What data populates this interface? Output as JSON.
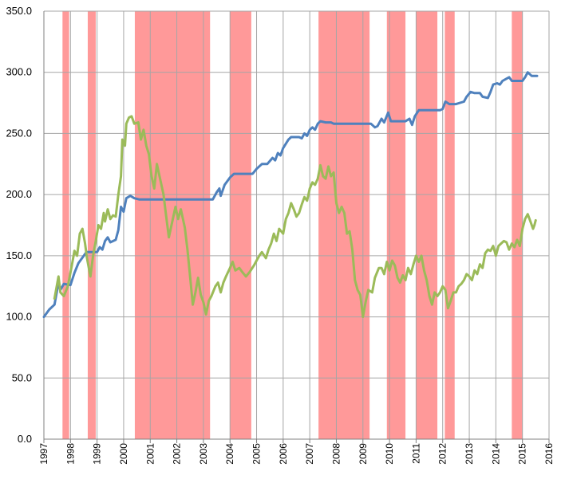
{
  "chart_data": {
    "type": "line",
    "title": "",
    "xlabel": "",
    "ylabel": "",
    "ylim": [
      0,
      350
    ],
    "xlim": [
      1997,
      2016
    ],
    "y_ticks": [
      {
        "value": 0,
        "label": "0.0"
      },
      {
        "value": 50,
        "label": "50.0"
      },
      {
        "value": 100,
        "label": "100.0"
      },
      {
        "value": 150,
        "label": "150.0"
      },
      {
        "value": 200,
        "label": "200.0"
      },
      {
        "value": 250,
        "label": "250.0"
      },
      {
        "value": 300,
        "label": "300.0"
      },
      {
        "value": 350,
        "label": "350.0"
      }
    ],
    "x_ticks": [
      {
        "value": 1997,
        "label": "1997"
      },
      {
        "value": 1998,
        "label": "1998"
      },
      {
        "value": 1999,
        "label": "1999"
      },
      {
        "value": 2000,
        "label": "2000"
      },
      {
        "value": 2001,
        "label": "2001"
      },
      {
        "value": 2002,
        "label": "2002"
      },
      {
        "value": 2003,
        "label": "2003"
      },
      {
        "value": 2004,
        "label": "2004"
      },
      {
        "value": 2005,
        "label": "2005"
      },
      {
        "value": 2006,
        "label": "2006"
      },
      {
        "value": 2007,
        "label": "2007"
      },
      {
        "value": 2008,
        "label": "2008"
      },
      {
        "value": 2009,
        "label": "2009"
      },
      {
        "value": 2010,
        "label": "2010"
      },
      {
        "value": 2011,
        "label": "2011"
      },
      {
        "value": 2012,
        "label": "2012"
      },
      {
        "value": 2013,
        "label": "2013"
      },
      {
        "value": 2014,
        "label": "2014"
      },
      {
        "value": 2015,
        "label": "2015"
      },
      {
        "value": 2016,
        "label": "2016"
      }
    ],
    "grid": true,
    "shaded_periods": {
      "color": "#ff9999",
      "ranges": [
        [
          1997.7,
          1997.95
        ],
        [
          1998.65,
          1998.95
        ],
        [
          2000.42,
          2003.25
        ],
        [
          2004.0,
          2004.8
        ],
        [
          2007.33,
          2009.25
        ],
        [
          2009.9,
          2010.6
        ],
        [
          2011.0,
          2011.8
        ],
        [
          2012.08,
          2012.45
        ],
        [
          2014.6,
          2015.0
        ]
      ]
    },
    "series": [
      {
        "color": "#4f81bd",
        "points": [
          [
            1997.0,
            100
          ],
          [
            1997.2,
            106
          ],
          [
            1997.4,
            110
          ],
          [
            1997.55,
            128
          ],
          [
            1997.62,
            122
          ],
          [
            1997.75,
            127
          ],
          [
            1998.0,
            126
          ],
          [
            1998.15,
            136
          ],
          [
            1998.3,
            144
          ],
          [
            1998.5,
            150
          ],
          [
            1998.6,
            153
          ],
          [
            1998.8,
            153
          ],
          [
            1999.0,
            153
          ],
          [
            1999.1,
            157
          ],
          [
            1999.2,
            155
          ],
          [
            1999.3,
            162
          ],
          [
            1999.4,
            165
          ],
          [
            1999.5,
            161
          ],
          [
            1999.7,
            163
          ],
          [
            1999.8,
            171
          ],
          [
            1999.9,
            190
          ],
          [
            2000.0,
            186
          ],
          [
            2000.1,
            197
          ],
          [
            2000.25,
            199
          ],
          [
            2000.4,
            197
          ],
          [
            2000.6,
            196
          ],
          [
            2001.0,
            196
          ],
          [
            2002.0,
            196
          ],
          [
            2003.0,
            196
          ],
          [
            2003.2,
            196
          ],
          [
            2003.35,
            196
          ],
          [
            2003.5,
            202
          ],
          [
            2003.6,
            205
          ],
          [
            2003.65,
            199
          ],
          [
            2003.8,
            208
          ],
          [
            2004.0,
            214
          ],
          [
            2004.15,
            217
          ],
          [
            2004.5,
            217
          ],
          [
            2004.85,
            217
          ],
          [
            2005.0,
            221
          ],
          [
            2005.2,
            225
          ],
          [
            2005.4,
            225
          ],
          [
            2005.6,
            230
          ],
          [
            2005.7,
            228
          ],
          [
            2005.8,
            234
          ],
          [
            2005.9,
            232
          ],
          [
            2006.0,
            238
          ],
          [
            2006.2,
            245
          ],
          [
            2006.3,
            247
          ],
          [
            2006.6,
            247
          ],
          [
            2006.7,
            246
          ],
          [
            2006.8,
            250
          ],
          [
            2006.9,
            248
          ],
          [
            2007.0,
            253
          ],
          [
            2007.1,
            255
          ],
          [
            2007.2,
            253
          ],
          [
            2007.3,
            258
          ],
          [
            2007.4,
            260
          ],
          [
            2007.6,
            259
          ],
          [
            2007.8,
            259
          ],
          [
            2007.9,
            258
          ],
          [
            2008.5,
            258
          ],
          [
            2009.0,
            258
          ],
          [
            2009.3,
            258
          ],
          [
            2009.45,
            255
          ],
          [
            2009.55,
            256
          ],
          [
            2009.7,
            262
          ],
          [
            2009.8,
            259
          ],
          [
            2009.95,
            267
          ],
          [
            2010.05,
            260
          ],
          [
            2010.6,
            260
          ],
          [
            2010.75,
            262
          ],
          [
            2010.85,
            257
          ],
          [
            2010.95,
            264
          ],
          [
            2011.1,
            269
          ],
          [
            2011.5,
            269
          ],
          [
            2011.9,
            269
          ],
          [
            2012.0,
            270
          ],
          [
            2012.1,
            276
          ],
          [
            2012.25,
            274
          ],
          [
            2012.5,
            274
          ],
          [
            2012.8,
            276
          ],
          [
            2012.9,
            280
          ],
          [
            2013.05,
            284
          ],
          [
            2013.2,
            283
          ],
          [
            2013.4,
            283
          ],
          [
            2013.5,
            280
          ],
          [
            2013.7,
            279
          ],
          [
            2013.8,
            284
          ],
          [
            2013.9,
            290
          ],
          [
            2014.05,
            291
          ],
          [
            2014.15,
            290
          ],
          [
            2014.25,
            293
          ],
          [
            2014.5,
            296
          ],
          [
            2014.6,
            293
          ],
          [
            2014.9,
            293
          ],
          [
            2015.0,
            293
          ],
          [
            2015.1,
            296
          ],
          [
            2015.2,
            300
          ],
          [
            2015.35,
            297
          ],
          [
            2015.55,
            297
          ]
        ]
      },
      {
        "color": "#9bbb59",
        "points": [
          [
            1997.4,
            115
          ],
          [
            1997.55,
            133
          ],
          [
            1997.62,
            120
          ],
          [
            1997.75,
            117
          ],
          [
            1997.9,
            125
          ],
          [
            1998.05,
            142
          ],
          [
            1998.15,
            154
          ],
          [
            1998.25,
            150
          ],
          [
            1998.35,
            168
          ],
          [
            1998.45,
            172
          ],
          [
            1998.55,
            160
          ],
          [
            1998.62,
            148
          ],
          [
            1998.75,
            133
          ],
          [
            1998.85,
            150
          ],
          [
            1998.95,
            162
          ],
          [
            1999.05,
            175
          ],
          [
            1999.15,
            172
          ],
          [
            1999.25,
            185
          ],
          [
            1999.3,
            178
          ],
          [
            1999.4,
            188
          ],
          [
            1999.5,
            180
          ],
          [
            1999.6,
            183
          ],
          [
            1999.7,
            182
          ],
          [
            1999.8,
            200
          ],
          [
            1999.9,
            215
          ],
          [
            1999.95,
            245
          ],
          [
            2000.05,
            240
          ],
          [
            2000.1,
            258
          ],
          [
            2000.2,
            263
          ],
          [
            2000.3,
            264
          ],
          [
            2000.4,
            258
          ],
          [
            2000.55,
            259
          ],
          [
            2000.65,
            245
          ],
          [
            2000.75,
            253
          ],
          [
            2000.85,
            240
          ],
          [
            2000.95,
            233
          ],
          [
            2001.05,
            215
          ],
          [
            2001.15,
            205
          ],
          [
            2001.25,
            225
          ],
          [
            2001.35,
            215
          ],
          [
            2001.5,
            200
          ],
          [
            2001.6,
            182
          ],
          [
            2001.7,
            165
          ],
          [
            2001.8,
            175
          ],
          [
            2001.95,
            190
          ],
          [
            2002.05,
            180
          ],
          [
            2002.15,
            188
          ],
          [
            2002.3,
            173
          ],
          [
            2002.4,
            155
          ],
          [
            2002.5,
            133
          ],
          [
            2002.6,
            110
          ],
          [
            2002.7,
            120
          ],
          [
            2002.8,
            132
          ],
          [
            2002.9,
            118
          ],
          [
            2003.0,
            112
          ],
          [
            2003.1,
            102
          ],
          [
            2003.2,
            113
          ],
          [
            2003.3,
            117
          ],
          [
            2003.45,
            125
          ],
          [
            2003.55,
            128
          ],
          [
            2003.65,
            120
          ],
          [
            2003.75,
            128
          ],
          [
            2003.85,
            133
          ],
          [
            2004.0,
            140
          ],
          [
            2004.1,
            145
          ],
          [
            2004.2,
            138
          ],
          [
            2004.35,
            140
          ],
          [
            2004.45,
            137
          ],
          [
            2004.6,
            133
          ],
          [
            2004.75,
            137
          ],
          [
            2004.9,
            142
          ],
          [
            2005.0,
            146
          ],
          [
            2005.1,
            150
          ],
          [
            2005.2,
            153
          ],
          [
            2005.35,
            148
          ],
          [
            2005.45,
            155
          ],
          [
            2005.55,
            160
          ],
          [
            2005.65,
            168
          ],
          [
            2005.75,
            162
          ],
          [
            2005.85,
            172
          ],
          [
            2006.0,
            168
          ],
          [
            2006.1,
            180
          ],
          [
            2006.2,
            185
          ],
          [
            2006.3,
            193
          ],
          [
            2006.4,
            188
          ],
          [
            2006.5,
            182
          ],
          [
            2006.6,
            185
          ],
          [
            2006.7,
            192
          ],
          [
            2006.8,
            198
          ],
          [
            2006.9,
            195
          ],
          [
            2007.0,
            205
          ],
          [
            2007.1,
            210
          ],
          [
            2007.2,
            208
          ],
          [
            2007.3,
            213
          ],
          [
            2007.4,
            224
          ],
          [
            2007.5,
            215
          ],
          [
            2007.6,
            213
          ],
          [
            2007.7,
            223
          ],
          [
            2007.8,
            215
          ],
          [
            2007.9,
            218
          ],
          [
            2008.0,
            193
          ],
          [
            2008.1,
            185
          ],
          [
            2008.2,
            190
          ],
          [
            2008.3,
            185
          ],
          [
            2008.4,
            168
          ],
          [
            2008.5,
            170
          ],
          [
            2008.6,
            155
          ],
          [
            2008.7,
            130
          ],
          [
            2008.8,
            122
          ],
          [
            2008.9,
            118
          ],
          [
            2009.0,
            100
          ],
          [
            2009.1,
            112
          ],
          [
            2009.2,
            122
          ],
          [
            2009.35,
            120
          ],
          [
            2009.45,
            132
          ],
          [
            2009.6,
            140
          ],
          [
            2009.7,
            140
          ],
          [
            2009.8,
            135
          ],
          [
            2009.9,
            145
          ],
          [
            2010.0,
            138
          ],
          [
            2010.1,
            146
          ],
          [
            2010.2,
            142
          ],
          [
            2010.3,
            132
          ],
          [
            2010.4,
            128
          ],
          [
            2010.5,
            134
          ],
          [
            2010.6,
            130
          ],
          [
            2010.7,
            140
          ],
          [
            2010.8,
            135
          ],
          [
            2010.9,
            143
          ],
          [
            2011.0,
            150
          ],
          [
            2011.1,
            145
          ],
          [
            2011.2,
            150
          ],
          [
            2011.3,
            138
          ],
          [
            2011.4,
            130
          ],
          [
            2011.5,
            117
          ],
          [
            2011.6,
            110
          ],
          [
            2011.7,
            120
          ],
          [
            2011.8,
            117
          ],
          [
            2011.9,
            120
          ],
          [
            2012.0,
            125
          ],
          [
            2012.1,
            122
          ],
          [
            2012.2,
            107
          ],
          [
            2012.3,
            113
          ],
          [
            2012.4,
            120
          ],
          [
            2012.5,
            120
          ],
          [
            2012.6,
            125
          ],
          [
            2012.7,
            127
          ],
          [
            2012.8,
            130
          ],
          [
            2012.9,
            135
          ],
          [
            2013.0,
            133
          ],
          [
            2013.1,
            130
          ],
          [
            2013.2,
            138
          ],
          [
            2013.3,
            135
          ],
          [
            2013.4,
            143
          ],
          [
            2013.5,
            140
          ],
          [
            2013.6,
            152
          ],
          [
            2013.7,
            155
          ],
          [
            2013.8,
            154
          ],
          [
            2013.9,
            158
          ],
          [
            2014.0,
            150
          ],
          [
            2014.1,
            158
          ],
          [
            2014.2,
            160
          ],
          [
            2014.3,
            162
          ],
          [
            2014.4,
            161
          ],
          [
            2014.5,
            155
          ],
          [
            2014.6,
            160
          ],
          [
            2014.7,
            157
          ],
          [
            2014.8,
            163
          ],
          [
            2014.9,
            158
          ],
          [
            2015.0,
            172
          ],
          [
            2015.1,
            180
          ],
          [
            2015.2,
            184
          ],
          [
            2015.3,
            178
          ],
          [
            2015.4,
            172
          ],
          [
            2015.45,
            175
          ],
          [
            2015.5,
            179
          ]
        ]
      }
    ]
  }
}
